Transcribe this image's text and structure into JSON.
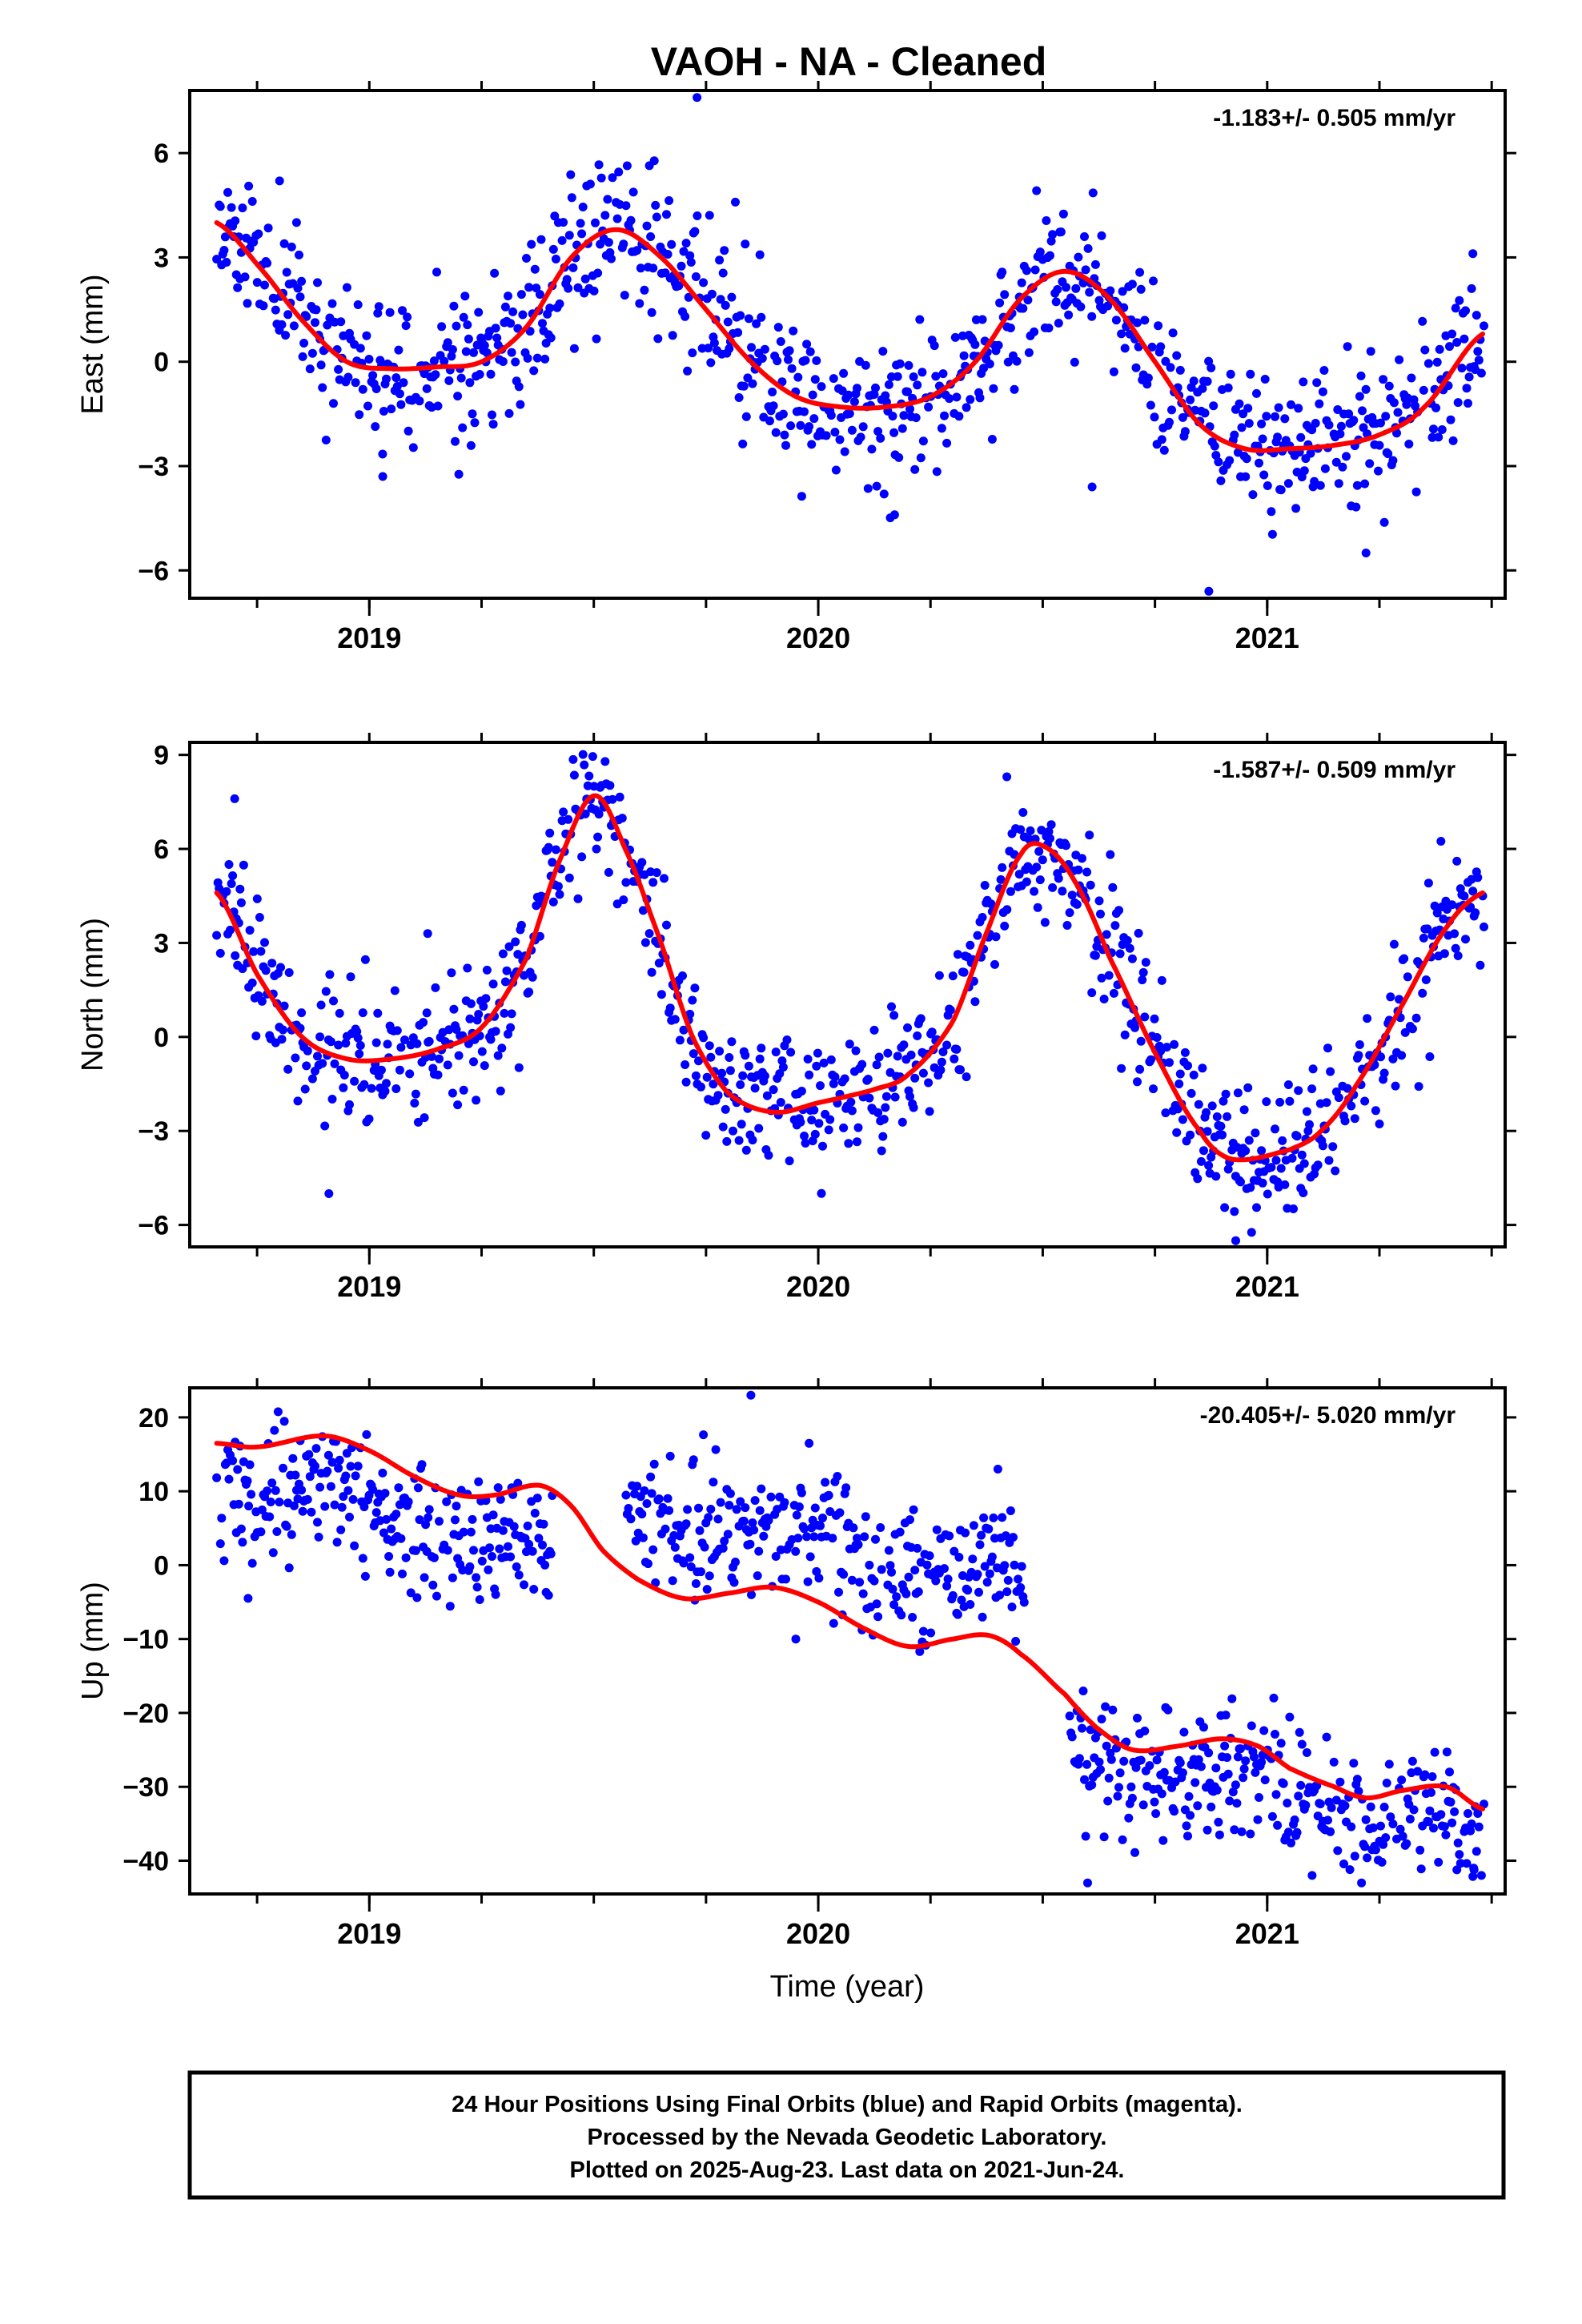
{
  "title": "VAOH  - NA - Cleaned",
  "xlabel": "Time (year)",
  "x_ticks": [
    "2019",
    "2020",
    "2021"
  ],
  "footer": {
    "line1": "24 Hour Positions Using Final Orbits (blue) and Rapid Orbits (magenta).",
    "line2": "Processed by the Nevada Geodetic Laboratory.",
    "line3": "Plotted on 2025-Aug-23. Last data on 2021-Jun-24."
  },
  "colors": {
    "points": "#0000ff",
    "fit": "#ff0000",
    "axes": "#000000"
  },
  "chart_data": [
    {
      "type": "scatter",
      "name": "east",
      "ylabel": "East (mm)",
      "rate": "-1.183+/- 0.505 mm/yr",
      "xlim": [
        2018.6,
        2021.53
      ],
      "ylim": [
        -6.8,
        7.8
      ],
      "yticks": [
        -6,
        -3,
        0,
        3,
        6
      ],
      "ytick_labels": [
        "−6",
        "−3",
        "0",
        "3",
        "6"
      ],
      "x_minor_ticks": [
        2018.75,
        2019.0,
        2019.25,
        2019.5,
        2019.75,
        2020.0,
        2020.25,
        2020.5,
        2020.75,
        2021.0,
        2021.25,
        2021.5
      ],
      "fit_knots": [
        [
          2018.66,
          4.0
        ],
        [
          2018.75,
          2.8
        ],
        [
          2018.85,
          1.2
        ],
        [
          2018.95,
          0.0
        ],
        [
          2019.05,
          -0.2
        ],
        [
          2019.15,
          -0.15
        ],
        [
          2019.25,
          0.0
        ],
        [
          2019.35,
          1.0
        ],
        [
          2019.45,
          3.0
        ],
        [
          2019.55,
          3.8
        ],
        [
          2019.65,
          3.0
        ],
        [
          2019.75,
          1.5
        ],
        [
          2019.85,
          0.0
        ],
        [
          2019.95,
          -1.0
        ],
        [
          2020.05,
          -1.3
        ],
        [
          2020.15,
          -1.3
        ],
        [
          2020.25,
          -1.0
        ],
        [
          2020.35,
          0.0
        ],
        [
          2020.45,
          1.8
        ],
        [
          2020.55,
          2.6
        ],
        [
          2020.65,
          1.8
        ],
        [
          2020.75,
          0.0
        ],
        [
          2020.85,
          -1.8
        ],
        [
          2020.95,
          -2.5
        ],
        [
          2021.05,
          -2.5
        ],
        [
          2021.15,
          -2.4
        ],
        [
          2021.25,
          -2.1
        ],
        [
          2021.35,
          -1.3
        ],
        [
          2021.48,
          0.8
        ]
      ],
      "outliers": [
        [
          2019.73,
          7.6
        ],
        [
          2020.87,
          -6.6
        ],
        [
          2020.61,
          -3.6
        ],
        [
          2021.22,
          -5.5
        ],
        [
          2019.03,
          -3.3
        ],
        [
          2020.17,
          -4.4
        ],
        [
          2018.8,
          5.2
        ]
      ],
      "noise_sd": 1.1,
      "seed": 11,
      "gap_days": []
    },
    {
      "type": "scatter",
      "name": "north",
      "ylabel": "North (mm)",
      "rate": "-1.587+/- 0.509 mm/yr",
      "xlim": [
        2018.6,
        2021.53
      ],
      "ylim": [
        -6.7,
        9.4
      ],
      "yticks": [
        -6,
        -3,
        0,
        3,
        6,
        9
      ],
      "ytick_labels": [
        "−6",
        "−3",
        "0",
        "3",
        "6",
        "9"
      ],
      "x_minor_ticks": [
        2018.75,
        2019.0,
        2019.25,
        2019.5,
        2019.75,
        2020.0,
        2020.25,
        2020.5,
        2020.75,
        2021.0,
        2021.25,
        2021.5
      ],
      "fit_knots": [
        [
          2018.66,
          4.6
        ],
        [
          2018.75,
          2.0
        ],
        [
          2018.85,
          0.0
        ],
        [
          2018.95,
          -0.7
        ],
        [
          2019.05,
          -0.7
        ],
        [
          2019.15,
          -0.4
        ],
        [
          2019.25,
          0.3
        ],
        [
          2019.35,
          2.5
        ],
        [
          2019.42,
          5.5
        ],
        [
          2019.5,
          7.7
        ],
        [
          2019.57,
          6.0
        ],
        [
          2019.65,
          3.0
        ],
        [
          2019.72,
          0.0
        ],
        [
          2019.8,
          -1.8
        ],
        [
          2019.9,
          -2.4
        ],
        [
          2020.0,
          -2.1
        ],
        [
          2020.12,
          -1.7
        ],
        [
          2020.2,
          -1.2
        ],
        [
          2020.3,
          0.5
        ],
        [
          2020.38,
          3.5
        ],
        [
          2020.45,
          5.8
        ],
        [
          2020.5,
          6.1
        ],
        [
          2020.57,
          5.0
        ],
        [
          2020.65,
          2.5
        ],
        [
          2020.75,
          -0.5
        ],
        [
          2020.85,
          -3.0
        ],
        [
          2020.92,
          -3.9
        ],
        [
          2021.05,
          -3.6
        ],
        [
          2021.12,
          -3.0
        ],
        [
          2021.2,
          -1.5
        ],
        [
          2021.3,
          1.0
        ],
        [
          2021.4,
          3.5
        ],
        [
          2021.48,
          4.6
        ]
      ],
      "outliers": [
        [
          2020.93,
          -6.5
        ],
        [
          2018.7,
          7.6
        ],
        [
          2018.91,
          -5.0
        ],
        [
          2020.42,
          8.3
        ],
        [
          2019.13,
          3.3
        ]
      ],
      "noise_sd": 1.05,
      "seed": 23,
      "gap_days": []
    },
    {
      "type": "scatter",
      "name": "up",
      "ylabel": "Up (mm)",
      "rate": "-20.405+/- 5.020 mm/yr",
      "xlim": [
        2018.6,
        2021.53
      ],
      "ylim": [
        -44.5,
        24
      ],
      "yticks": [
        -40,
        -30,
        -20,
        -10,
        0,
        10,
        20
      ],
      "ytick_labels": [
        "−40",
        "−30",
        "−20",
        "−10",
        "0",
        "10",
        "20"
      ],
      "x_minor_ticks": [
        2018.75,
        2019.0,
        2019.25,
        2019.5,
        2019.75,
        2020.0,
        2020.25,
        2020.5,
        2020.75,
        2021.0,
        2021.25,
        2021.5
      ],
      "fit_knots": [
        [
          2018.66,
          16.5
        ],
        [
          2018.75,
          16.0
        ],
        [
          2018.9,
          17.5
        ],
        [
          2019.0,
          15.5
        ],
        [
          2019.1,
          12.0
        ],
        [
          2019.2,
          9.5
        ],
        [
          2019.28,
          9.5
        ],
        [
          2019.38,
          10.8
        ],
        [
          2019.45,
          8.0
        ],
        [
          2019.52,
          2.0
        ],
        [
          2019.6,
          -2.0
        ],
        [
          2019.7,
          -4.5
        ],
        [
          2019.8,
          -3.8
        ],
        [
          2019.9,
          -3.0
        ],
        [
          2020.0,
          -5.0
        ],
        [
          2020.1,
          -8.5
        ],
        [
          2020.2,
          -11.0
        ],
        [
          2020.3,
          -10.0
        ],
        [
          2020.38,
          -9.5
        ],
        [
          2020.45,
          -12.0
        ],
        [
          2020.55,
          -17.5
        ],
        [
          2020.62,
          -22.0
        ],
        [
          2020.7,
          -25.0
        ],
        [
          2020.8,
          -24.5
        ],
        [
          2020.9,
          -23.5
        ],
        [
          2020.98,
          -24.5
        ],
        [
          2021.05,
          -27.5
        ],
        [
          2021.15,
          -30.0
        ],
        [
          2021.22,
          -31.5
        ],
        [
          2021.3,
          -30.5
        ],
        [
          2021.4,
          -30.0
        ],
        [
          2021.48,
          -33.0
        ]
      ],
      "outliers": [
        [
          2019.85,
          23.0
        ],
        [
          2020.4,
          13.0
        ],
        [
          2020.6,
          -43.0
        ],
        [
          2021.1,
          -42.0
        ],
        [
          2021.21,
          -43.0
        ],
        [
          2021.46,
          -41.0
        ],
        [
          2018.73,
          -4.5
        ],
        [
          2019.95,
          -10.0
        ]
      ],
      "noise_sd": 4.3,
      "seed": 37,
      "gap_days": [
        [
          2019.41,
          2019.57
        ],
        [
          2020.46,
          2020.56
        ]
      ],
      "segment_offsets": [
        [
          2018.6,
          2019.42,
          -7.0
        ],
        [
          2019.56,
          2020.46,
          9.0
        ],
        [
          2020.56,
          2021.53,
          -3.5
        ]
      ]
    }
  ]
}
